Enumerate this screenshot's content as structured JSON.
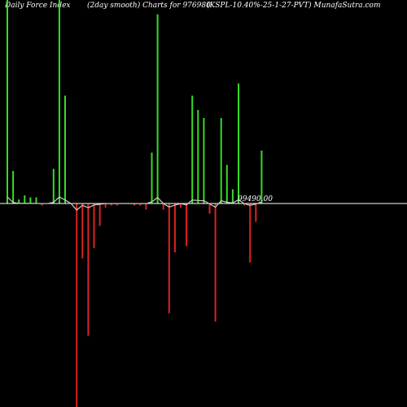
{
  "header": {
    "left": "Daily Force  Index",
    "center": "(2day smooth) Charts for 976980",
    "right": "(KSPL-10.40%-25-1-27-PVT) MunafaSutra.com"
  },
  "colors": {
    "background": "#000000",
    "positive": "#33dd22",
    "negative": "#dd2222",
    "zero_line": "#ffffff",
    "smooth_line": "#cccccc"
  },
  "chart_data": {
    "type": "bar",
    "title": "Daily Force Index (2day smooth) Charts for 976980",
    "zero_label": "99490.00",
    "ylim": [
      -100,
      100
    ],
    "values": [
      100,
      16,
      2,
      4,
      3,
      3,
      -1,
      0,
      17,
      100,
      53,
      0,
      -100,
      -27,
      -65,
      -22,
      -11,
      -2,
      -1,
      -1,
      0,
      0,
      -1,
      -1,
      -3,
      25,
      93,
      -3,
      -54,
      -24,
      -2,
      -21,
      53,
      46,
      42,
      -5,
      -58,
      42,
      19,
      7,
      59,
      -1,
      -29,
      -9,
      26
    ]
  }
}
